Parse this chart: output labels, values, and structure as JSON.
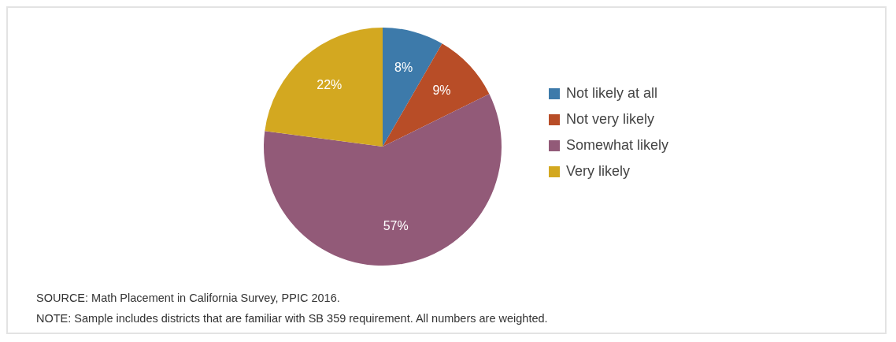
{
  "chart_data": {
    "type": "pie",
    "categories": [
      "Not likely at all",
      "Not very likely",
      "Somewhat likely",
      "Very likely"
    ],
    "values": [
      8,
      9,
      57,
      22
    ],
    "colors": [
      "#3d7aaa",
      "#b84d27",
      "#925a78",
      "#d3a820"
    ],
    "value_labels": [
      "8%",
      "9%",
      "57%",
      "22%"
    ],
    "legend": "right",
    "annotations": [
      "SOURCE: Math Placement in California Survey, PPIC 2016.",
      "NOTE: Sample includes districts that are familiar with SB 359 requirement. All numbers are weighted."
    ]
  }
}
